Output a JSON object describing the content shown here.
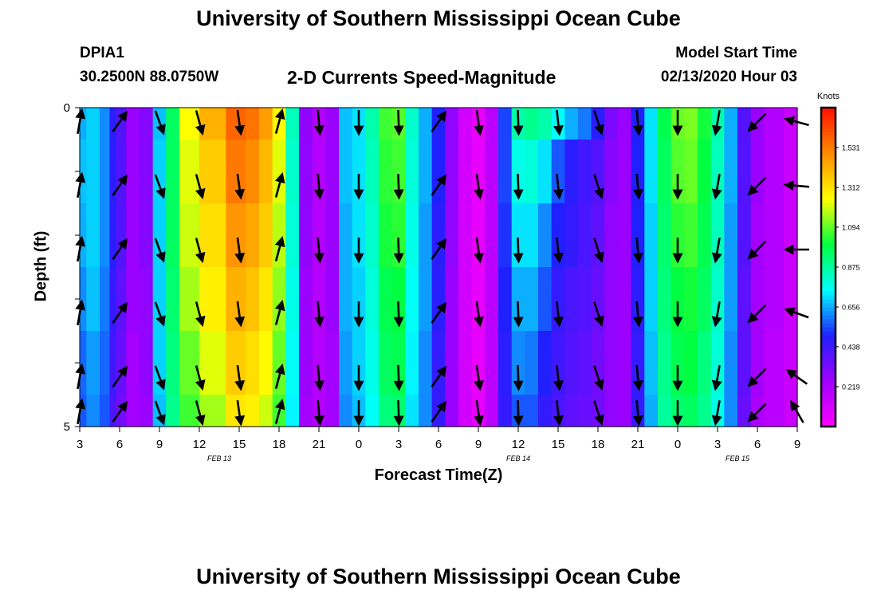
{
  "header": {
    "title_top": "University of Southern Mississippi Ocean Cube",
    "title_bottom": "University of Southern Mississippi Ocean Cube",
    "station": "DPIA1",
    "coords": "30.2500N 88.0750W",
    "subtitle": "2-D Currents Speed-Magnitude",
    "model_start_label": "Model Start Time",
    "model_start_value": "02/13/2020 Hour 03"
  },
  "chart_data": {
    "type": "heatmap",
    "title": "2-D Currents Speed-Magnitude",
    "xlabel": "Forecast Time(Z)",
    "ylabel": "Depth (ft)",
    "x_hours": [
      0,
      3,
      6,
      9,
      12,
      15,
      18,
      21,
      24,
      27,
      30,
      33,
      36,
      39,
      42,
      45,
      48,
      51,
      54
    ],
    "x_tick_labels": [
      "3",
      "6",
      "9",
      "12",
      "15",
      "18",
      "21",
      "0",
      "3",
      "6",
      "9",
      "12",
      "15",
      "18",
      "21",
      "0",
      "3",
      "6",
      "9"
    ],
    "date_labels": [
      {
        "text": "FEB 13",
        "hour": 10.5
      },
      {
        "text": "FEB 14",
        "hour": 33
      },
      {
        "text": "FEB 15",
        "hour": 49.5
      }
    ],
    "y_ticks": [
      "0",
      "5"
    ],
    "ylim": [
      0,
      5
    ],
    "depth_levels": [
      0,
      1,
      2,
      3,
      4,
      5
    ],
    "colorbar": {
      "title": "Knots",
      "range": [
        0,
        1.75
      ],
      "tick_values": [
        0.219,
        0.438,
        0.656,
        0.875,
        1.094,
        1.312,
        1.531
      ],
      "tick_labels": [
        "0.219",
        "0.438",
        "0.656",
        "0.875",
        "1.094",
        "1.312",
        "1.531"
      ],
      "colors": [
        "#ff00ff",
        "#a000ff",
        "#2020ff",
        "#00ffff",
        "#00ff40",
        "#ffff00",
        "#ff8c00",
        "#ff1000"
      ]
    },
    "speed_knots_by_hour": [
      [
        0,
        0.66,
        0.68,
        0.66,
        0.62,
        0.58,
        0.56
      ],
      [
        1,
        0.7,
        0.7,
        0.7,
        0.68,
        0.64,
        0.62
      ],
      [
        2,
        0.62,
        0.62,
        0.62,
        0.6,
        0.58,
        0.56
      ],
      [
        2.5,
        0.48,
        0.48,
        0.48,
        0.46,
        0.44,
        0.42
      ],
      [
        3,
        0.4,
        0.4,
        0.4,
        0.38,
        0.36,
        0.34
      ],
      [
        4,
        0.26,
        0.26,
        0.26,
        0.26,
        0.24,
        0.24
      ],
      [
        5,
        0.3,
        0.3,
        0.3,
        0.28,
        0.28,
        0.26
      ],
      [
        6,
        0.68,
        0.7,
        0.7,
        0.7,
        0.7,
        0.68
      ],
      [
        7,
        0.96,
        0.96,
        0.96,
        0.94,
        0.92,
        0.9
      ],
      [
        8,
        1.25,
        1.22,
        1.2,
        1.16,
        1.1,
        1.06
      ],
      [
        10,
        1.42,
        1.36,
        1.32,
        1.28,
        1.22,
        1.16
      ],
      [
        12,
        1.58,
        1.54,
        1.48,
        1.42,
        1.36,
        1.3
      ],
      [
        13,
        1.55,
        1.5,
        1.44,
        1.38,
        1.32,
        1.28
      ],
      [
        14,
        1.46,
        1.4,
        1.36,
        1.3,
        1.26,
        1.2
      ],
      [
        15,
        1.26,
        1.22,
        1.18,
        1.14,
        1.1,
        1.06
      ],
      [
        16,
        0.84,
        0.82,
        0.8,
        0.78,
        0.76,
        0.74
      ],
      [
        17,
        0.28,
        0.28,
        0.28,
        0.26,
        0.26,
        0.24
      ],
      [
        18,
        0.2,
        0.2,
        0.2,
        0.2,
        0.2,
        0.2
      ],
      [
        19,
        0.26,
        0.26,
        0.26,
        0.26,
        0.24,
        0.24
      ],
      [
        20,
        0.68,
        0.68,
        0.66,
        0.66,
        0.64,
        0.62
      ],
      [
        21,
        0.72,
        0.72,
        0.72,
        0.7,
        0.7,
        0.68
      ],
      [
        22,
        0.86,
        0.84,
        0.82,
        0.8,
        0.78,
        0.76
      ],
      [
        23,
        1.06,
        1.04,
        1.02,
        0.98,
        0.96,
        0.92
      ],
      [
        24,
        1.08,
        1.06,
        1.04,
        1.0,
        0.98,
        0.94
      ],
      [
        25,
        0.82,
        0.8,
        0.78,
        0.76,
        0.74,
        0.72
      ],
      [
        26,
        0.66,
        0.66,
        0.64,
        0.64,
        0.62,
        0.62
      ],
      [
        27,
        0.5,
        0.5,
        0.48,
        0.48,
        0.46,
        0.46
      ],
      [
        28,
        0.28,
        0.28,
        0.28,
        0.26,
        0.26,
        0.26
      ],
      [
        29,
        0.12,
        0.12,
        0.12,
        0.12,
        0.12,
        0.12
      ],
      [
        30,
        0.06,
        0.06,
        0.06,
        0.06,
        0.06,
        0.06
      ],
      [
        31,
        0.18,
        0.18,
        0.18,
        0.18,
        0.18,
        0.18
      ],
      [
        32,
        0.54,
        0.54,
        0.52,
        0.5,
        0.48,
        0.46
      ],
      [
        33,
        0.86,
        0.78,
        0.72,
        0.66,
        0.62,
        0.56
      ],
      [
        34,
        0.9,
        0.8,
        0.72,
        0.66,
        0.6,
        0.56
      ],
      [
        35,
        0.86,
        0.72,
        0.62,
        0.56,
        0.5,
        0.46
      ],
      [
        36,
        0.76,
        0.56,
        0.5,
        0.46,
        0.44,
        0.42
      ],
      [
        37,
        0.66,
        0.48,
        0.46,
        0.42,
        0.4,
        0.38
      ],
      [
        38,
        0.6,
        0.44,
        0.42,
        0.4,
        0.38,
        0.36
      ],
      [
        39,
        0.48,
        0.4,
        0.38,
        0.36,
        0.34,
        0.34
      ],
      [
        40,
        0.32,
        0.3,
        0.28,
        0.28,
        0.28,
        0.28
      ],
      [
        41,
        0.26,
        0.26,
        0.26,
        0.26,
        0.26,
        0.26
      ],
      [
        42,
        0.5,
        0.5,
        0.5,
        0.48,
        0.46,
        0.46
      ],
      [
        43,
        0.72,
        0.72,
        0.7,
        0.7,
        0.68,
        0.66
      ],
      [
        44,
        0.98,
        0.96,
        0.94,
        0.92,
        0.9,
        0.88
      ],
      [
        45,
        1.1,
        1.08,
        1.04,
        1.0,
        0.98,
        0.94
      ],
      [
        46,
        1.12,
        1.1,
        1.06,
        1.02,
        1.0,
        0.96
      ],
      [
        47,
        1.02,
        1.0,
        0.98,
        0.96,
        0.92,
        0.9
      ],
      [
        48,
        0.86,
        0.84,
        0.84,
        0.82,
        0.8,
        0.78
      ],
      [
        49,
        0.66,
        0.66,
        0.64,
        0.64,
        0.62,
        0.62
      ],
      [
        50,
        0.4,
        0.4,
        0.4,
        0.38,
        0.38,
        0.36
      ],
      [
        51,
        0.26,
        0.26,
        0.24,
        0.24,
        0.24,
        0.22
      ],
      [
        52,
        0.2,
        0.2,
        0.2,
        0.2,
        0.18,
        0.18
      ],
      [
        54,
        0.14,
        0.14,
        0.14,
        0.14,
        0.14,
        0.14
      ]
    ],
    "vector_hours": [
      0,
      3,
      6,
      9,
      12,
      15,
      18,
      21,
      24,
      27,
      30,
      33,
      36,
      39,
      42,
      45,
      48,
      51,
      54
    ],
    "vector_direction_deg": [
      [
        10,
        10,
        10,
        10,
        10,
        10
      ],
      [
        35,
        35,
        35,
        35,
        35,
        35
      ],
      [
        160,
        160,
        160,
        160,
        160,
        160
      ],
      [
        165,
        165,
        165,
        165,
        165,
        165
      ],
      [
        172,
        172,
        172,
        172,
        172,
        172
      ],
      [
        15,
        15,
        15,
        15,
        15,
        15
      ],
      [
        175,
        175,
        175,
        175,
        175,
        175
      ],
      [
        180,
        180,
        180,
        180,
        180,
        180
      ],
      [
        178,
        178,
        178,
        178,
        178,
        178
      ],
      [
        35,
        35,
        35,
        35,
        35,
        35
      ],
      [
        172,
        172,
        172,
        172,
        172,
        172
      ],
      [
        178,
        178,
        178,
        178,
        178,
        178
      ],
      [
        174,
        174,
        174,
        174,
        174,
        174
      ],
      [
        162,
        162,
        162,
        162,
        162,
        162
      ],
      [
        175,
        175,
        175,
        175,
        175,
        175
      ],
      [
        180,
        180,
        180,
        180,
        180,
        180
      ],
      [
        190,
        190,
        190,
        190,
        190,
        190
      ],
      [
        225,
        225,
        225,
        225,
        225,
        225
      ],
      [
        285,
        275,
        270,
        290,
        305,
        330
      ]
    ]
  }
}
